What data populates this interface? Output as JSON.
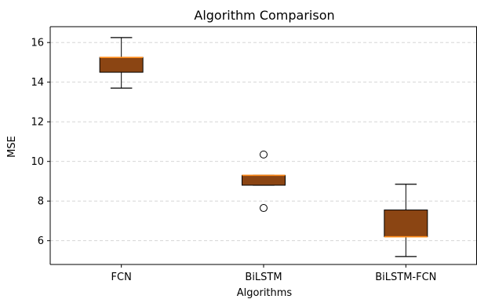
{
  "chart_data": {
    "type": "box",
    "title": "Algorithm Comparison",
    "xlabel": "Algorithms",
    "ylabel": "MSE",
    "categories": [
      "FCN",
      "BiLSTM",
      "BiLSTM-FCN"
    ],
    "ylim": [
      4.8,
      16.8
    ],
    "yticks": [
      6,
      8,
      10,
      12,
      14,
      16
    ],
    "grid": "horizontal-dashed",
    "box_color": "#8B4513",
    "median_color": "#FF8C1A",
    "boxes": [
      {
        "name": "FCN",
        "whislo": 13.7,
        "q1": 14.5,
        "med": 15.25,
        "q3": 15.25,
        "whishi": 16.25,
        "fliers": []
      },
      {
        "name": "BiLSTM",
        "whislo": 8.8,
        "q1": 8.8,
        "med": 9.3,
        "q3": 9.3,
        "whishi": 9.3,
        "fliers": [
          10.35,
          7.65
        ]
      },
      {
        "name": "BiLSTM-FCN",
        "whislo": 5.2,
        "q1": 6.2,
        "med": 6.2,
        "q3": 7.55,
        "whishi": 8.85,
        "fliers": []
      }
    ]
  }
}
